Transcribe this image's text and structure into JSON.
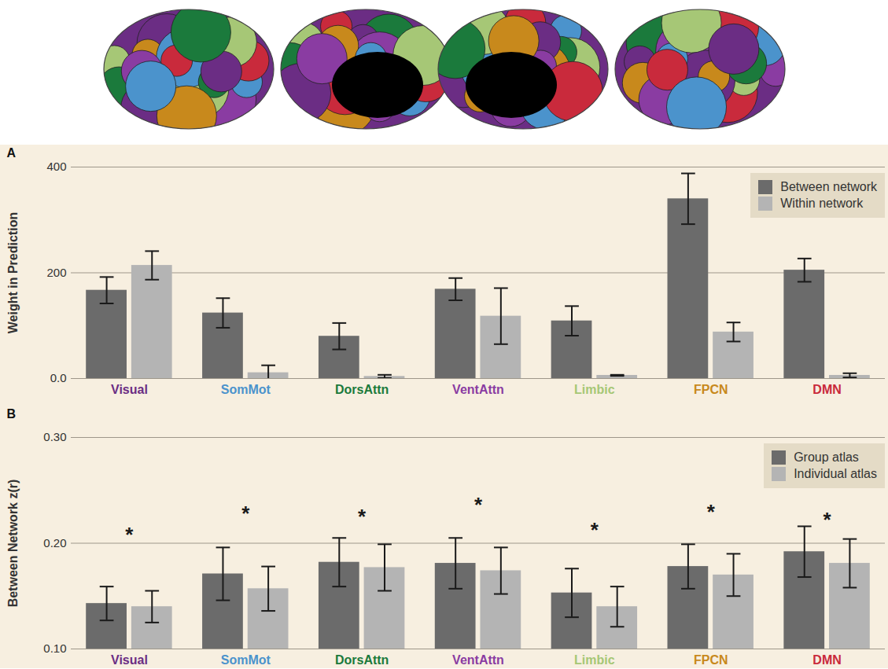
{
  "chart_data": [
    {
      "type": "bar",
      "panel": "A",
      "ylabel": "Weight in Prediction",
      "categories": [
        "Visual",
        "SomMot",
        "DorsAttn",
        "VentAttn",
        "Limbic",
        "FPCN",
        "DMN"
      ],
      "category_colors": [
        "#6b2d84",
        "#4b93cc",
        "#1b7a3c",
        "#8a3ca2",
        "#a6c776",
        "#c8891c",
        "#c92a3c"
      ],
      "series": [
        {
          "name": "Between network",
          "color": "#6b6b6b",
          "values": [
            167,
            124,
            80,
            169,
            109,
            340,
            205
          ],
          "errors": [
            25,
            28,
            25,
            21,
            28,
            48,
            22
          ]
        },
        {
          "name": "Within network",
          "color": "#b4b4b4",
          "values": [
            214,
            11,
            4,
            118,
            6,
            88,
            6
          ],
          "errors": [
            27,
            14,
            3,
            53,
            1,
            18,
            4
          ]
        }
      ],
      "ylim": [
        0,
        400
      ],
      "yticks": [
        {
          "value": 0,
          "label": "0.0"
        },
        200,
        400
      ],
      "grid": true,
      "legend": "upper right"
    },
    {
      "type": "bar",
      "panel": "B",
      "ylabel": "Between Network z(r)",
      "categories": [
        "Visual",
        "SomMot",
        "DorsAttn",
        "VentAttn",
        "Limbic",
        "FPCN",
        "DMN"
      ],
      "category_colors": [
        "#6b2d84",
        "#4b93cc",
        "#1b7a3c",
        "#8a3ca2",
        "#a6c776",
        "#c8891c",
        "#c92a3c"
      ],
      "series": [
        {
          "name": "Group atlas",
          "color": "#6b6b6b",
          "values": [
            0.143,
            0.171,
            0.182,
            0.181,
            0.153,
            0.178,
            0.192
          ],
          "errors": [
            0.016,
            0.025,
            0.023,
            0.024,
            0.023,
            0.021,
            0.024
          ]
        },
        {
          "name": "Individual atlas",
          "color": "#b4b4b4",
          "values": [
            0.14,
            0.157,
            0.177,
            0.174,
            0.14,
            0.17,
            0.181
          ],
          "errors": [
            0.015,
            0.021,
            0.022,
            0.022,
            0.019,
            0.02,
            0.023
          ]
        }
      ],
      "ylim": [
        0.1,
        0.3
      ],
      "yticks": [
        {
          "value": 0.1,
          "label": "0.10"
        },
        {
          "value": 0.2,
          "label": "0.20"
        },
        {
          "value": 0.3,
          "label": "0.30"
        }
      ],
      "grid": true,
      "legend": "upper right",
      "annotations": [
        {
          "text": "*",
          "category": "Visual",
          "y": 0.208
        },
        {
          "text": "*",
          "category": "SomMot",
          "y": 0.228
        },
        {
          "text": "*",
          "category": "DorsAttn",
          "y": 0.225
        },
        {
          "text": "*",
          "category": "VentAttn",
          "y": 0.236
        },
        {
          "text": "*",
          "category": "Limbic",
          "y": 0.212
        },
        {
          "text": "*",
          "category": "FPCN",
          "y": 0.229
        },
        {
          "text": "*",
          "category": "DMN",
          "y": 0.222
        }
      ]
    }
  ]
}
